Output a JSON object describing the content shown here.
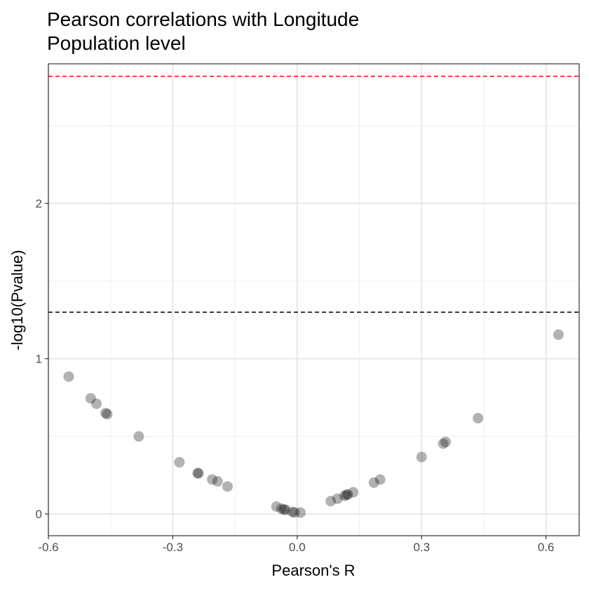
{
  "chart_data": {
    "type": "scatter",
    "title": "Pearson correlations with Longitude",
    "subtitle": "Population level",
    "xlabel": "Pearson's R",
    "ylabel": "-log10(Pvalue)",
    "xlim": [
      -0.6,
      0.68
    ],
    "ylim": [
      -0.14,
      2.9
    ],
    "x_ticks": [
      -0.6,
      -0.3,
      0.0,
      0.3,
      0.6
    ],
    "x_tick_labels": [
      "-0.6",
      "-0.3",
      "0.0",
      "0.3",
      "0.6"
    ],
    "y_ticks": [
      0,
      1,
      2
    ],
    "y_tick_labels": [
      "0",
      "1",
      "2"
    ],
    "grid": true,
    "reference_lines": [
      {
        "y": 1.3,
        "color": "#000000",
        "style": "dashed"
      },
      {
        "y": 2.82,
        "color": "#ff0000",
        "style": "dashed"
      }
    ],
    "point_color": "#000000",
    "point_opacity": 0.3,
    "points": [
      {
        "x": -0.551,
        "y": 0.885
      },
      {
        "x": -0.498,
        "y": 0.745
      },
      {
        "x": -0.484,
        "y": 0.71
      },
      {
        "x": -0.462,
        "y": 0.65
      },
      {
        "x": -0.458,
        "y": 0.643
      },
      {
        "x": -0.382,
        "y": 0.5
      },
      {
        "x": -0.284,
        "y": 0.333
      },
      {
        "x": -0.24,
        "y": 0.263
      },
      {
        "x": -0.238,
        "y": 0.262
      },
      {
        "x": -0.205,
        "y": 0.222
      },
      {
        "x": -0.192,
        "y": 0.21
      },
      {
        "x": -0.168,
        "y": 0.177
      },
      {
        "x": -0.05,
        "y": 0.048
      },
      {
        "x": -0.038,
        "y": 0.034
      },
      {
        "x": -0.032,
        "y": 0.029
      },
      {
        "x": -0.028,
        "y": 0.027
      },
      {
        "x": -0.012,
        "y": 0.013
      },
      {
        "x": -0.006,
        "y": 0.01
      },
      {
        "x": 0.008,
        "y": 0.009
      },
      {
        "x": 0.081,
        "y": 0.083
      },
      {
        "x": 0.097,
        "y": 0.098
      },
      {
        "x": 0.114,
        "y": 0.117
      },
      {
        "x": 0.119,
        "y": 0.123
      },
      {
        "x": 0.122,
        "y": 0.126
      },
      {
        "x": 0.135,
        "y": 0.14
      },
      {
        "x": 0.185,
        "y": 0.202
      },
      {
        "x": 0.2,
        "y": 0.222
      },
      {
        "x": 0.3,
        "y": 0.367
      },
      {
        "x": 0.352,
        "y": 0.453
      },
      {
        "x": 0.358,
        "y": 0.464
      },
      {
        "x": 0.436,
        "y": 0.617
      },
      {
        "x": 0.63,
        "y": 1.155
      }
    ]
  }
}
